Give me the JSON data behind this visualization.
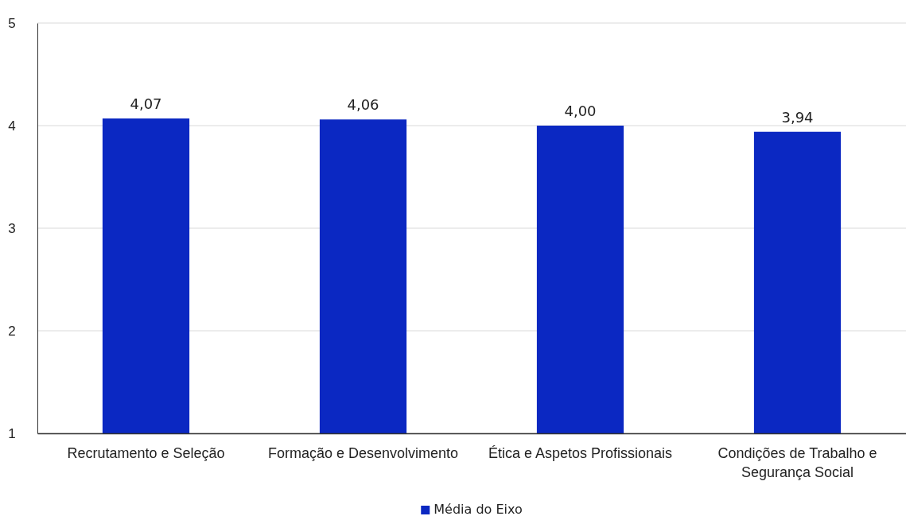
{
  "chart_data": {
    "type": "bar",
    "categories": [
      "Recrutamento e Seleção",
      "Formação e Desenvolvimento",
      "Ética e Aspetos Profissionais",
      "Condições de Trabalho e Segurança Social"
    ],
    "series": [
      {
        "name": "Média do Eixo",
        "color": "#0b28c2",
        "values": [
          4.07,
          4.06,
          4.0,
          3.94
        ],
        "value_labels": [
          "4,07",
          "4,06",
          "4,00",
          "3,94"
        ]
      }
    ],
    "ylim": [
      1,
      5
    ],
    "yticks": [
      1,
      2,
      3,
      4,
      5
    ],
    "grid": "y",
    "legend": "bottom"
  }
}
